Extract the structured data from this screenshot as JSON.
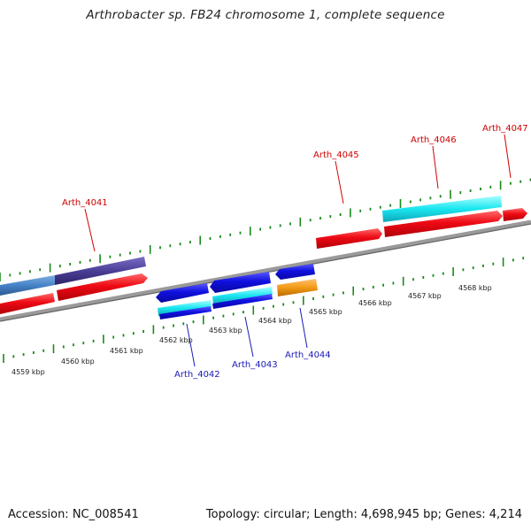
{
  "title": "Arthrobacter sp. FB24 chromosome 1, complete sequence",
  "footer": {
    "accession": "Accession: NC_008541",
    "topology": "Topology: circular; Length: 4,698,945 bp; Genes: 4,214"
  },
  "scale_labels": [
    "4559 kbp",
    "4560 kbp",
    "4561 kbp",
    "4562 kbp",
    "4563 kbp",
    "4564 kbp",
    "4565 kbp",
    "4566 kbp",
    "4567 kbp",
    "4568 kbp"
  ],
  "gene_labels": {
    "forward": [
      "Arth_4041",
      "Arth_4045",
      "Arth_4046",
      "Arth_4047"
    ],
    "reverse": [
      "Arth_4042",
      "Arth_4043",
      "Arth_4044"
    ]
  },
  "colors": {
    "backbone": "#8a8a8a",
    "forward_cds": "#ee0a14",
    "reverse_cds": "#1010e0",
    "cyan_feature": "#19e6f0",
    "orange_feature": "#f39a14",
    "steelblue_feature": "#4682c8",
    "slate_feature": "#4a3e96",
    "forward_label": "#d00000",
    "reverse_label": "#1a1ab8",
    "tick_green": "#1a8a1a"
  }
}
